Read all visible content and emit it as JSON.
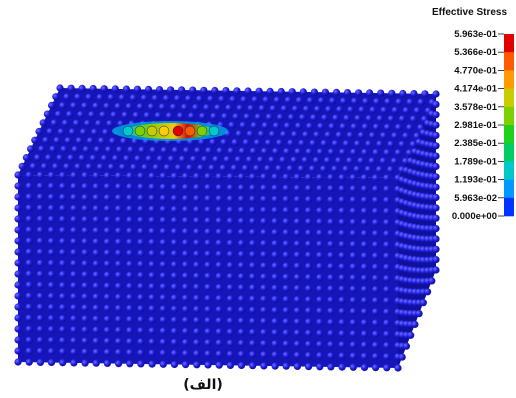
{
  "legend": {
    "title": "Effective Stress",
    "labels": [
      "5.963e-01",
      "5.366e-01",
      "4.770e-01",
      "4.174e-01",
      "3.578e-01",
      "2.981e-01",
      "2.385e-01",
      "1.789e-01",
      "1.193e-01",
      "5.963e-02",
      "0.000e+00"
    ],
    "colors": [
      "#e00000",
      "#ff5a00",
      "#ff9a00",
      "#c8cc00",
      "#7dd100",
      "#1fd11a",
      "#00cc66",
      "#00c8c8",
      "#0099ff",
      "#0033ff"
    ]
  },
  "model": {
    "particle_color": "#1b1bd8",
    "particle_highlight": "#5a5aff",
    "particle_shadow": "#0a0a90"
  },
  "caption": "(الف)"
}
